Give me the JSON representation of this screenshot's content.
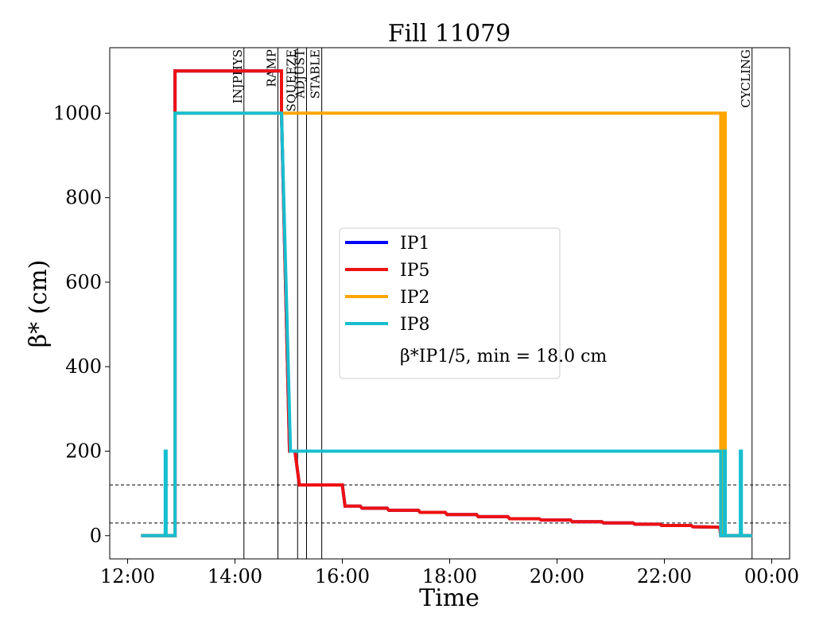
{
  "chart_data": {
    "type": "line",
    "title": "Fill 11079",
    "xlabel": "Time",
    "ylabel": "β* (cm)",
    "x_unit": "time of day",
    "xlim": [
      "12:00",
      "00:00"
    ],
    "x_ticks": [
      "12:00",
      "14:00",
      "16:00",
      "18:00",
      "20:00",
      "22:00",
      "00:00"
    ],
    "ylim": [
      -55,
      1155
    ],
    "y_ticks": [
      0,
      200,
      400,
      600,
      800,
      1000
    ],
    "grid": false,
    "legend_position": "center",
    "legend_note": "β*IP1/5, min = 18.0 cm",
    "hlines": [
      120,
      30
    ],
    "phases": [
      {
        "label": "INJPHYS",
        "x": "14:10"
      },
      {
        "label": "RAMP",
        "x": "14:48"
      },
      {
        "label": "SQUEEZE",
        "x": "15:10"
      },
      {
        "label": "ADJUST",
        "x": "15:20"
      },
      {
        "label": "STABLE",
        "x": "15:37"
      },
      {
        "label": "CYCLING",
        "x": "23:38"
      }
    ],
    "series": [
      {
        "name": "IP1",
        "color": "#0000ff",
        "points": [
          [
            "12:15",
            0
          ],
          [
            "12:53",
            0
          ],
          [
            "12:53",
            1100
          ],
          [
            "14:52",
            1100
          ],
          [
            "14:52",
            1000
          ],
          [
            "15:01",
            200
          ],
          [
            "15:07",
            200
          ],
          [
            "15:12",
            120
          ],
          [
            "16:00",
            120
          ],
          [
            "16:03",
            70
          ],
          [
            "16:20",
            70
          ],
          [
            "16:22",
            65
          ],
          [
            "16:50",
            65
          ],
          [
            "16:52",
            60
          ],
          [
            "17:25",
            60
          ],
          [
            "17:27",
            55
          ],
          [
            "17:55",
            55
          ],
          [
            "17:57",
            50
          ],
          [
            "18:30",
            50
          ],
          [
            "18:32",
            45
          ],
          [
            "19:05",
            45
          ],
          [
            "19:07",
            40
          ],
          [
            "19:40",
            40
          ],
          [
            "19:42",
            37
          ],
          [
            "20:15",
            37
          ],
          [
            "20:17",
            33
          ],
          [
            "20:50",
            33
          ],
          [
            "20:52",
            30
          ],
          [
            "21:25",
            30
          ],
          [
            "21:27",
            27
          ],
          [
            "21:55",
            27
          ],
          [
            "21:57",
            24
          ],
          [
            "22:30",
            24
          ],
          [
            "22:32",
            21
          ],
          [
            "23:00",
            20
          ],
          [
            "23:02",
            18
          ],
          [
            "23:03",
            0
          ],
          [
            "23:38",
            0
          ]
        ]
      },
      {
        "name": "IP5",
        "color": "#ee1111",
        "points": [
          [
            "12:15",
            0
          ],
          [
            "12:53",
            0
          ],
          [
            "12:53",
            1100
          ],
          [
            "14:52",
            1100
          ],
          [
            "14:52",
            1000
          ],
          [
            "15:01",
            200
          ],
          [
            "15:07",
            200
          ],
          [
            "15:12",
            120
          ],
          [
            "16:00",
            120
          ],
          [
            "16:03",
            70
          ],
          [
            "16:20",
            70
          ],
          [
            "16:22",
            65
          ],
          [
            "16:50",
            65
          ],
          [
            "16:52",
            60
          ],
          [
            "17:25",
            60
          ],
          [
            "17:27",
            55
          ],
          [
            "17:55",
            55
          ],
          [
            "17:57",
            50
          ],
          [
            "18:30",
            50
          ],
          [
            "18:32",
            45
          ],
          [
            "19:05",
            45
          ],
          [
            "19:07",
            40
          ],
          [
            "19:40",
            40
          ],
          [
            "19:42",
            37
          ],
          [
            "20:15",
            37
          ],
          [
            "20:17",
            33
          ],
          [
            "20:50",
            33
          ],
          [
            "20:52",
            30
          ],
          [
            "21:25",
            30
          ],
          [
            "21:27",
            27
          ],
          [
            "21:55",
            27
          ],
          [
            "21:57",
            24
          ],
          [
            "22:30",
            24
          ],
          [
            "22:32",
            21
          ],
          [
            "23:00",
            20
          ],
          [
            "23:02",
            18
          ],
          [
            "23:03",
            0
          ],
          [
            "23:38",
            0
          ]
        ]
      },
      {
        "name": "IP2",
        "color": "#ffa500",
        "points": [
          [
            "12:15",
            0
          ],
          [
            "12:53",
            0
          ],
          [
            "12:53",
            1000
          ],
          [
            "23:03",
            1000
          ],
          [
            "23:03",
            0
          ],
          [
            "23:05",
            0
          ],
          [
            "23:05",
            1000
          ],
          [
            "23:08",
            1000
          ],
          [
            "23:08",
            0
          ],
          [
            "23:38",
            0
          ]
        ]
      },
      {
        "name": "IP8",
        "color": "#17becf",
        "points": [
          [
            "12:15",
            0
          ],
          [
            "12:42",
            0
          ],
          [
            "12:42",
            200
          ],
          [
            "12:43",
            200
          ],
          [
            "12:43",
            0
          ],
          [
            "12:53",
            0
          ],
          [
            "12:53",
            1000
          ],
          [
            "14:52",
            1000
          ],
          [
            "15:02",
            200
          ],
          [
            "23:03",
            200
          ],
          [
            "23:03",
            0
          ],
          [
            "23:07",
            0
          ],
          [
            "23:07",
            200
          ],
          [
            "23:08",
            200
          ],
          [
            "23:08",
            0
          ],
          [
            "23:25",
            0
          ],
          [
            "23:25",
            200
          ],
          [
            "23:26",
            200
          ],
          [
            "23:26",
            0
          ],
          [
            "23:38",
            0
          ]
        ]
      }
    ]
  }
}
